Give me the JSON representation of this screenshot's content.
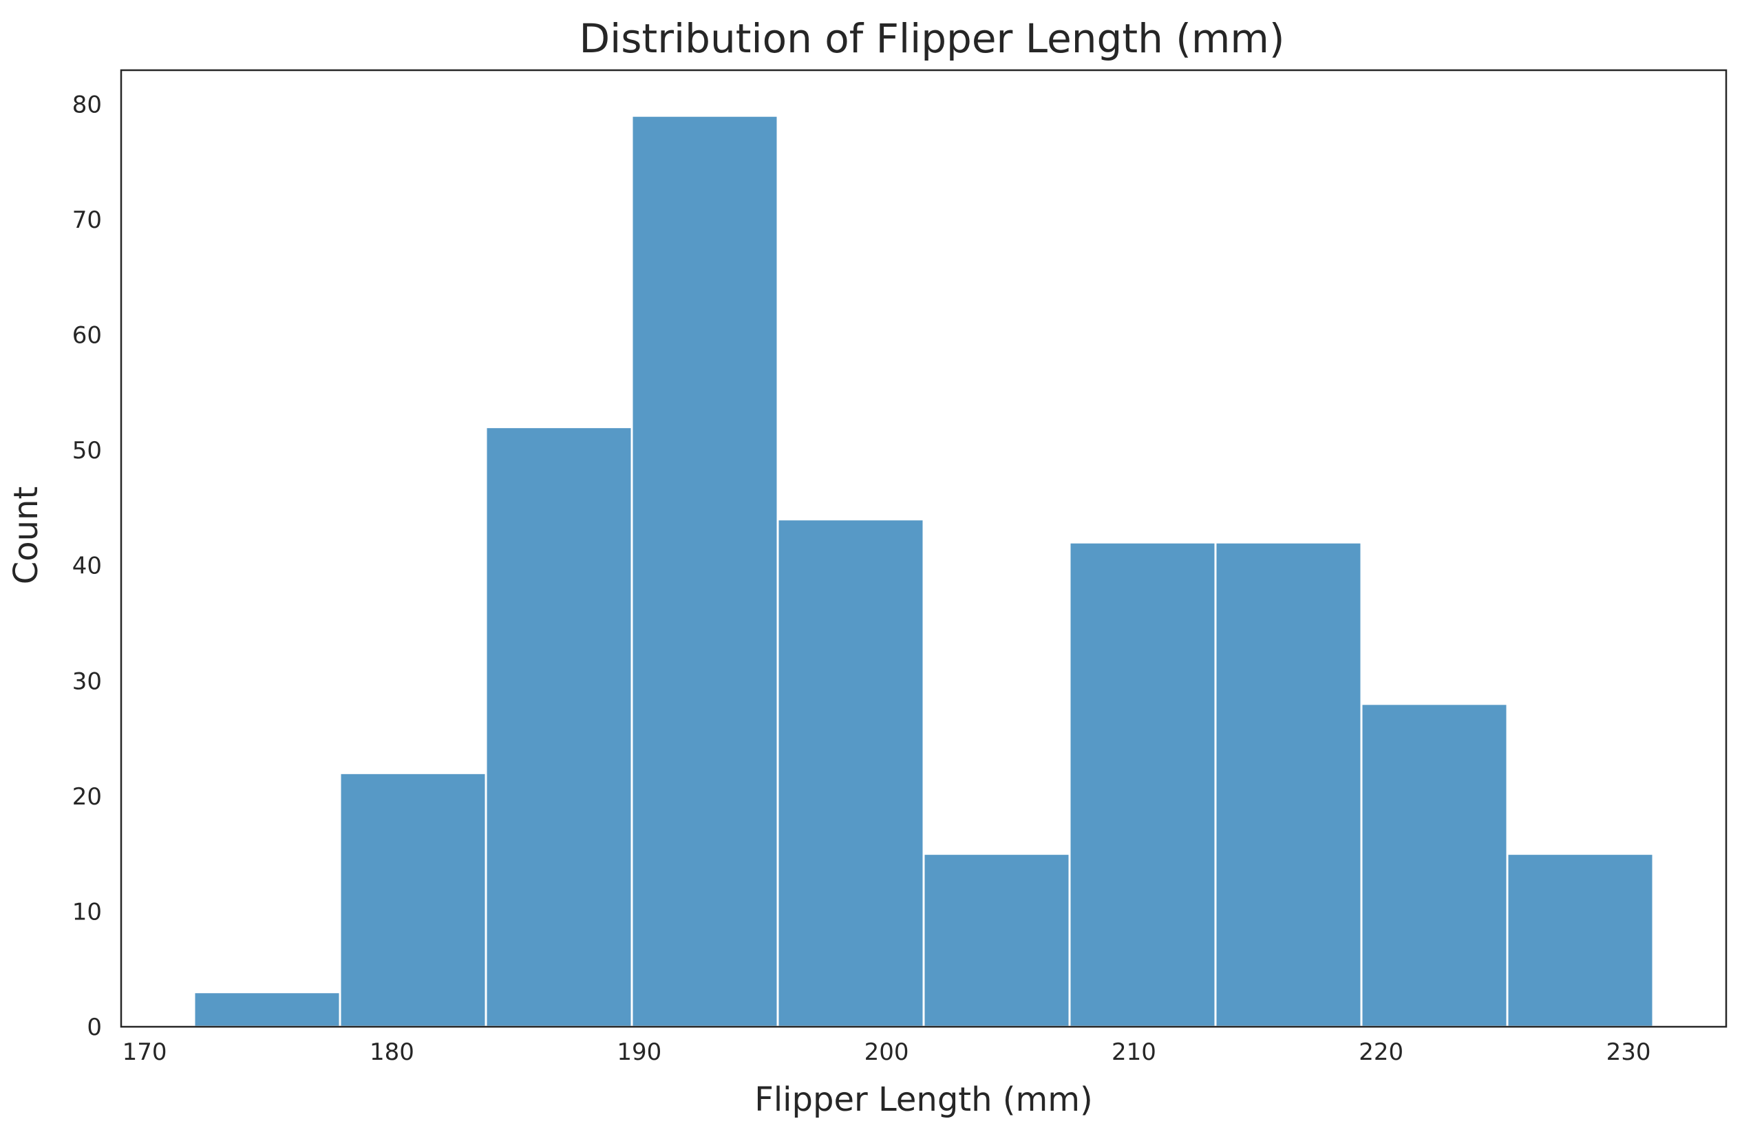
{
  "chart_data": {
    "type": "bar",
    "title": "Distribution of Flipper Length (mm)",
    "xlabel": "Flipper Length (mm)",
    "ylabel": "Count",
    "bin_edges": [
      172,
      177.9,
      183.8,
      189.7,
      195.6,
      201.5,
      207.4,
      213.3,
      219.2,
      225.1,
      231
    ],
    "values": [
      3,
      22,
      52,
      79,
      44,
      15,
      42,
      42,
      28,
      15
    ],
    "xlim": [
      169.05,
      233.95
    ],
    "ylim": [
      0,
      82.95
    ],
    "xticks": [
      170,
      180,
      190,
      200,
      210,
      220,
      230
    ],
    "yticks": [
      0,
      10,
      20,
      30,
      40,
      50,
      60,
      70,
      80
    ],
    "grid": false,
    "bar_color": "#5799C6"
  }
}
